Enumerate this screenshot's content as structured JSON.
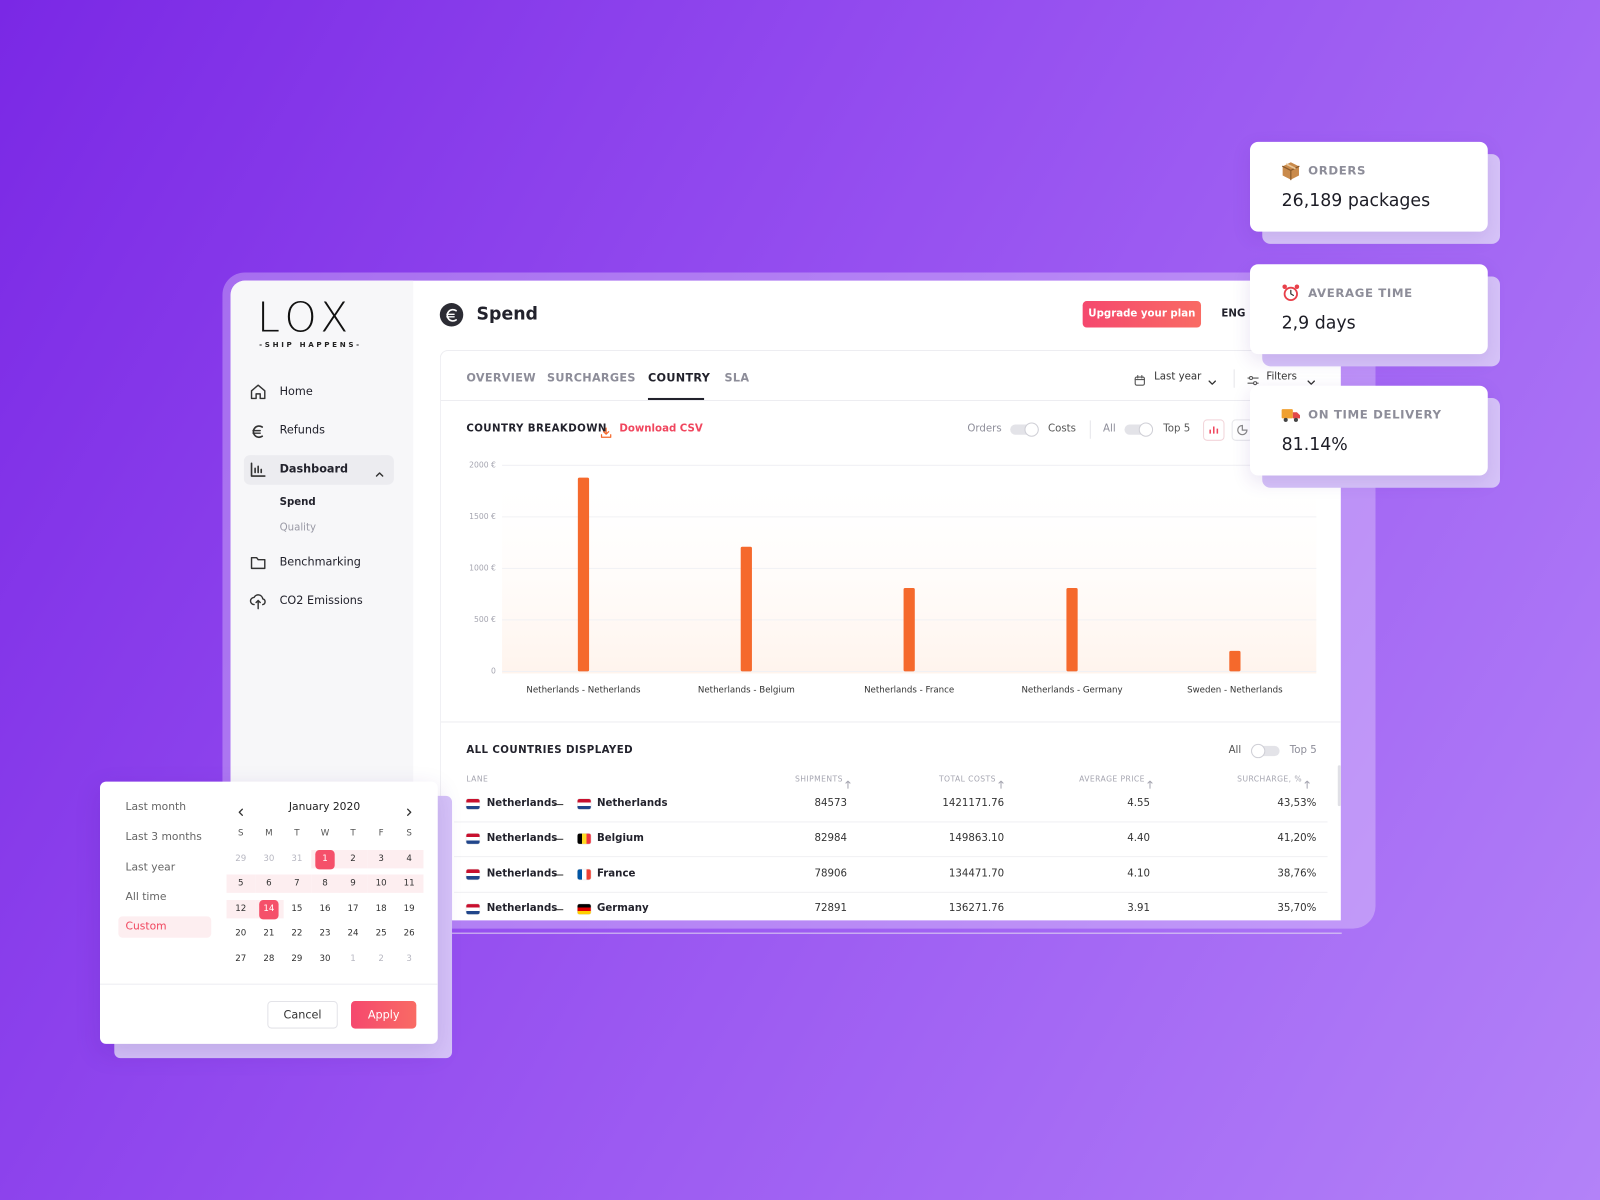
{
  "sidebar": {
    "logo": "LOX",
    "tagline": "-SHIP HAPPENS-",
    "nav": [
      "Home",
      "Refunds",
      "Dashboard",
      "Benchmarking",
      "CO2 Emissions"
    ],
    "subnav": [
      "Spend",
      "Quality"
    ]
  },
  "header": {
    "title": "Spend",
    "upgrade_button": "Upgrade your plan",
    "language": "ENG"
  },
  "tabs": [
    "OVERVIEW",
    "SURCHARGES",
    "COUNTRY",
    "SLA"
  ],
  "filters": {
    "period": "Last year",
    "filters": "Filters"
  },
  "chart": {
    "type": "bar",
    "title": "COUNTRY BREAKDOWN",
    "download": "Download CSV",
    "metric_toggle": [
      "Orders",
      "Costs"
    ],
    "scope_toggle": [
      "All",
      "Top 5"
    ],
    "categories": [
      "Netherlands - Netherlands",
      "Netherlands - Belgium",
      "Netherlands - France",
      "Netherlands - Germany",
      "Sweden - Netherlands"
    ],
    "values": [
      1880,
      1210,
      810,
      810,
      200
    ],
    "color": "#f5692c",
    "ylim": [
      0,
      2000
    ],
    "yticks": [
      0,
      {
        "value": 500,
        "label": "500 €"
      },
      {
        "value": 1000,
        "label": "1000 €"
      },
      {
        "value": 1500,
        "label": "1500 €"
      },
      {
        "value": 2000,
        "label": "2000 €"
      }
    ],
    "grid": true
  },
  "table": {
    "title": "ALL COUNTRIES DISPLAYED",
    "scope_toggle": [
      "All",
      "Top 5"
    ],
    "columns": [
      "LANE",
      "SHIPMENTS",
      "TOTAL COSTS",
      "AVERAGE PRICE",
      "SURCHARGE, %"
    ],
    "rows": [
      [
        "Netherlands",
        "Netherlands",
        "84573",
        "1421171.76",
        "4.55",
        "43,53%"
      ],
      [
        "Netherlands",
        "Belgium",
        "82984",
        "149863.10",
        "4.40",
        "41,20%"
      ],
      [
        "Netherlands",
        "France",
        "78906",
        "134471.70",
        "4.10",
        "38,76%"
      ],
      [
        "Netherlands",
        "Germany",
        "72891",
        "136271.76",
        "3.91",
        "35,70%"
      ]
    ]
  },
  "stats": [
    {
      "label": "ORDERS",
      "value": "26,189 packages"
    },
    {
      "label": "AVERAGE TIME",
      "value": "2,9 days"
    },
    {
      "label": "ON TIME DELIVERY",
      "value": "81.14%"
    }
  ],
  "date_picker": {
    "presets": [
      "Last month",
      "Last 3 months",
      "Last year",
      "All time",
      "Custom"
    ],
    "month": "January 2020",
    "weekdays": [
      "S",
      "M",
      "T",
      "W",
      "T",
      "F",
      "S"
    ],
    "weeks": [
      [
        29,
        30,
        31,
        1,
        2,
        3,
        4
      ],
      [
        5,
        6,
        7,
        8,
        9,
        10,
        11
      ],
      [
        12,
        14,
        15,
        16,
        17,
        18,
        19
      ],
      [
        20,
        21,
        22,
        23,
        24,
        25,
        26
      ],
      [
        27,
        28,
        29,
        30,
        1,
        2,
        3
      ]
    ],
    "buttons": [
      "Cancel",
      "Apply"
    ]
  }
}
